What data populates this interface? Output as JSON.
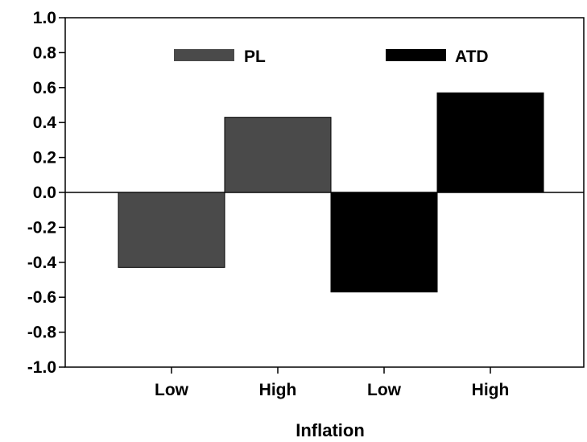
{
  "chart_data": {
    "type": "bar",
    "title": "",
    "xlabel": "Inflation",
    "ylabel": "",
    "ylim": [
      -1.0,
      1.0
    ],
    "yticks": [
      1.0,
      0.8,
      0.6,
      0.4,
      0.2,
      0.0,
      -0.2,
      -0.4,
      -0.6,
      -0.8,
      -1.0
    ],
    "ytick_labels": [
      "1.0",
      "0.8",
      "0.6",
      "0.4",
      "0.2",
      "0.0",
      "-0.2",
      "-0.4",
      "-0.6",
      "-0.8",
      "-1.0"
    ],
    "categories": [
      "Low",
      "High",
      "Low",
      "High"
    ],
    "series": [
      {
        "name": "PL",
        "color": "#4a4a4a",
        "values": [
          -0.43,
          0.43,
          null,
          null
        ]
      },
      {
        "name": "ATD",
        "color": "#000000",
        "values": [
          null,
          null,
          -0.57,
          0.57
        ]
      }
    ],
    "grid": false,
    "legend_position": "top"
  }
}
